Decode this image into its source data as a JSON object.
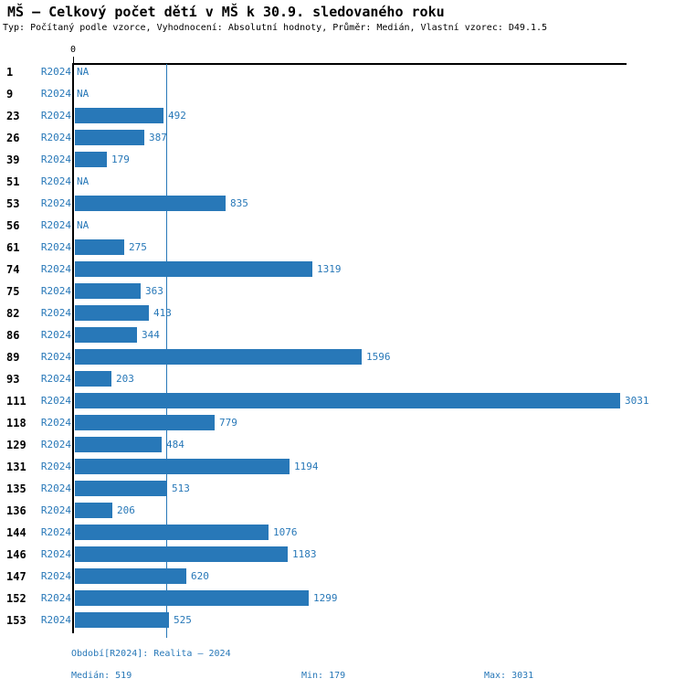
{
  "title": "MŠ – Celkový počet dětí v MŠ k 30.9. sledovaného roku",
  "subtitle": "Typ: Počítaný podle vzorce, Vyhodnocení: Absolutní hodnoty, Průměr: Medián, Vlastní vzorec: D49.1.5",
  "colors": {
    "bar": "#2878b8",
    "blue_text": "#2878b8",
    "axis": "#000000"
  },
  "axis": {
    "zero_label": "0"
  },
  "chart_data": {
    "type": "bar",
    "orientation": "horizontal",
    "title": "MŠ – Celkový počet dětí v MŠ k 30.9. sledovaného roku",
    "series_label": "R2024",
    "na_label": "NA",
    "xlim": [
      0,
      3076
    ],
    "median_value": 519,
    "grid": "median-line-only",
    "categories": [
      "1",
      "9",
      "23",
      "26",
      "39",
      "51",
      "53",
      "56",
      "61",
      "74",
      "75",
      "82",
      "86",
      "89",
      "93",
      "111",
      "118",
      "129",
      "131",
      "135",
      "136",
      "144",
      "146",
      "147",
      "152",
      "153"
    ],
    "values": [
      null,
      null,
      492,
      387,
      179,
      null,
      835,
      null,
      275,
      1319,
      363,
      413,
      344,
      1596,
      203,
      3031,
      779,
      484,
      1194,
      513,
      206,
      1076,
      1183,
      620,
      1299,
      525
    ]
  },
  "footer": {
    "period": "Období[R2024]: Realita – 2024",
    "median": "Medián: 519",
    "min": "Min: 179",
    "max": "Max: 3031"
  }
}
